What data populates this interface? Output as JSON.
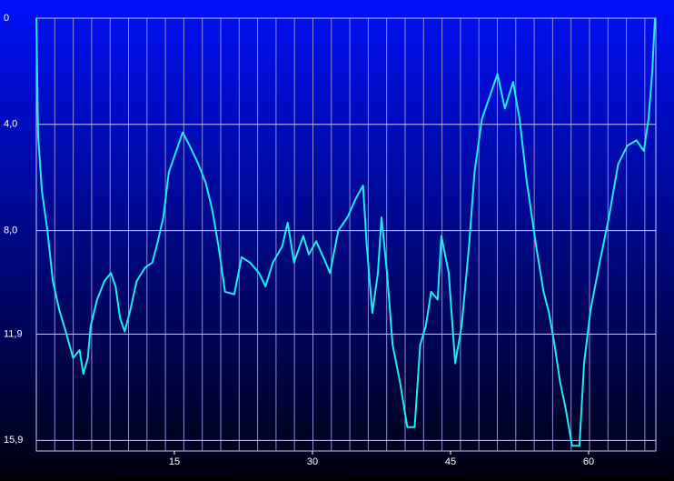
{
  "chart_data": {
    "type": "line",
    "x": [
      0,
      0.2,
      0.6,
      1.2,
      1.8,
      2.5,
      3.2,
      4.0,
      4.7,
      5.1,
      5.6,
      5.9,
      6.6,
      7.4,
      8.1,
      8.6,
      9.1,
      9.6,
      10.2,
      10.9,
      11.8,
      12.6,
      13.2,
      13.8,
      14.4,
      15.1,
      15.9,
      16.8,
      17.6,
      18.4,
      19.1,
      19.8,
      20.5,
      21.5,
      22.3,
      23.2,
      24.2,
      24.9,
      25.7,
      26.7,
      27.3,
      28.0,
      29.0,
      29.6,
      30.4,
      31.3,
      31.9,
      32.8,
      33.8,
      34.7,
      35.5,
      35.9,
      36.5,
      37.1,
      37.5,
      38.1,
      38.7,
      39.5,
      40.3,
      41.1,
      41.7,
      42.3,
      42.9,
      43.6,
      44.0,
      44.8,
      45.5,
      46.2,
      47.0,
      47.6,
      48.4,
      49.1,
      50.1,
      50.9,
      51.8,
      52.5,
      53.3,
      54.3,
      55.1,
      55.7,
      56.3,
      56.9,
      57.5,
      58.2,
      59.0,
      59.5,
      60.2,
      61.2,
      62.2,
      63.2,
      64.2,
      65.2,
      66.0,
      66.5,
      66.9,
      67.2
    ],
    "series": [
      {
        "color": "#22e8f0",
        "values": [
          0,
          4.45,
          6.5,
          8.0,
          9.9,
          11.0,
          11.8,
          12.8,
          12.5,
          13.4,
          12.8,
          11.6,
          10.6,
          9.9,
          9.6,
          10.1,
          11.3,
          11.8,
          11.0,
          9.9,
          9.4,
          9.2,
          8.4,
          7.5,
          5.8,
          5.1,
          4.3,
          4.9,
          5.5,
          6.2,
          7.2,
          8.6,
          10.3,
          10.4,
          9.0,
          9.2,
          9.6,
          10.1,
          9.2,
          8.6,
          7.7,
          9.2,
          8.2,
          8.9,
          8.4,
          9.1,
          9.6,
          8.0,
          7.5,
          6.8,
          6.3,
          8.6,
          11.1,
          9.6,
          7.5,
          9.6,
          12.3,
          13.7,
          15.4,
          15.4,
          12.3,
          11.6,
          10.3,
          10.6,
          8.2,
          9.6,
          13.0,
          11.6,
          8.6,
          5.8,
          3.8,
          3.1,
          2.1,
          3.4,
          2.4,
          3.8,
          6.2,
          8.6,
          10.3,
          11.1,
          12.3,
          13.7,
          14.7,
          16.1,
          16.1,
          13.0,
          11.0,
          9.2,
          7.5,
          5.5,
          4.8,
          4.6,
          5.0,
          3.8,
          2.1,
          0
        ]
      }
    ],
    "xlim": [
      0,
      67.3
    ],
    "xticks": [
      15,
      30,
      45,
      60
    ],
    "ylim": [
      0,
      16.3
    ],
    "yticks": [
      0,
      {
        "value": 4.0,
        "label": "4,0"
      },
      {
        "value": 8.0,
        "label": "8,0"
      },
      {
        "value": 11.9,
        "label": "11,9"
      },
      {
        "value": 15.9,
        "label": "15,9"
      }
    ],
    "y_inverted": true,
    "grid": true
  }
}
